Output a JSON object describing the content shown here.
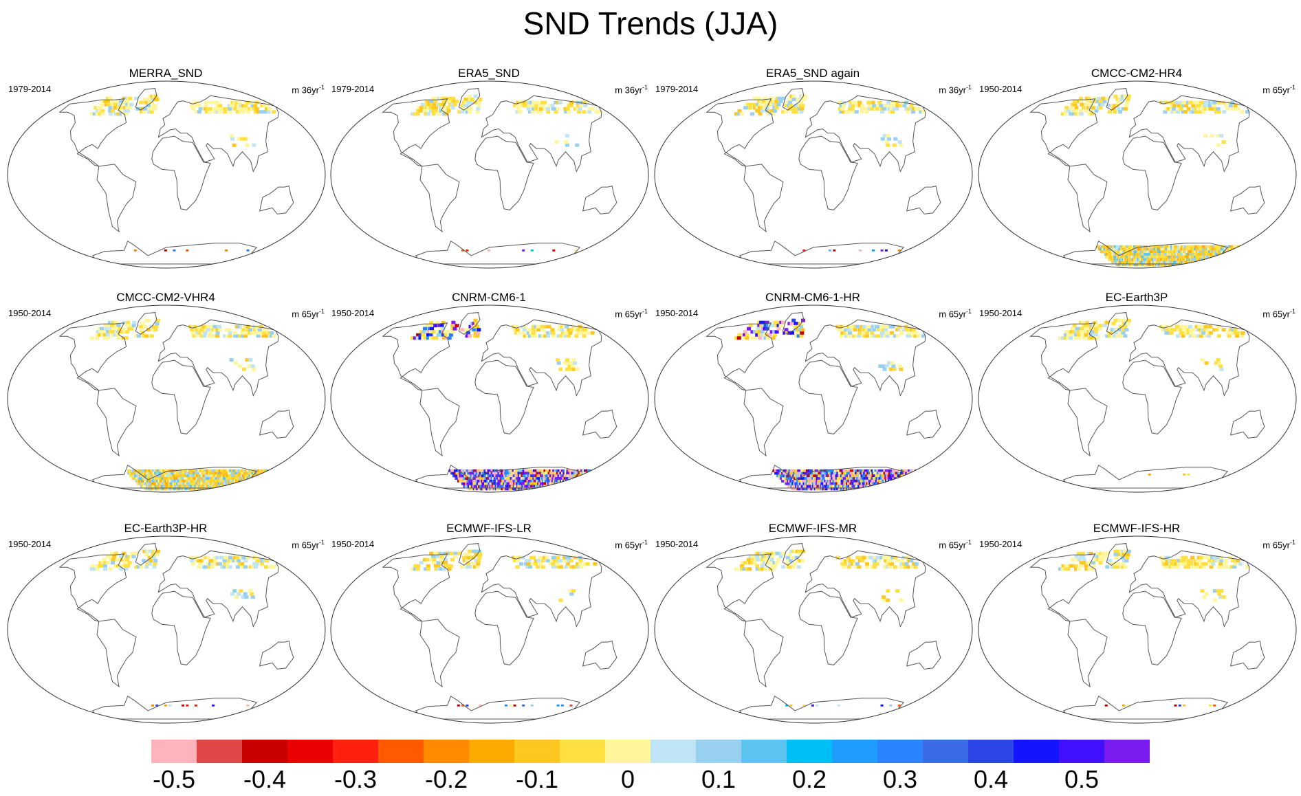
{
  "title": "SND Trends (JJA)",
  "panels": [
    {
      "title": "MERRA_SND",
      "period": "1979-2014",
      "units_base": "m 36yr",
      "units_exp": "-1",
      "pattern": "weak"
    },
    {
      "title": "ERA5_SND",
      "period": "1979-2014",
      "units_base": "m 36yr",
      "units_exp": "-1",
      "pattern": "weak"
    },
    {
      "title": "ERA5_SND again",
      "period": "1979-2014",
      "units_base": "m 36yr",
      "units_exp": "-1",
      "pattern": "weak"
    },
    {
      "title": "CMCC-CM2-HR4",
      "period": "1950-2014",
      "units_base": "m 65yr",
      "units_exp": "-1",
      "pattern": "antarctic-pos"
    },
    {
      "title": "CMCC-CM2-VHR4",
      "period": "1950-2014",
      "units_base": "m 65yr",
      "units_exp": "-1",
      "pattern": "antarctic-pos"
    },
    {
      "title": "CNRM-CM6-1",
      "period": "1950-2014",
      "units_base": "m 65yr",
      "units_exp": "-1",
      "pattern": "antarctic-strong"
    },
    {
      "title": "CNRM-CM6-1-HR",
      "period": "1950-2014",
      "units_base": "m 65yr",
      "units_exp": "-1",
      "pattern": "antarctic-strong"
    },
    {
      "title": "EC-Earth3P",
      "period": "1950-2014",
      "units_base": "m 65yr",
      "units_exp": "-1",
      "pattern": "weak"
    },
    {
      "title": "EC-Earth3P-HR",
      "period": "1950-2014",
      "units_base": "m 65yr",
      "units_exp": "-1",
      "pattern": "weak"
    },
    {
      "title": "ECMWF-IFS-LR",
      "period": "1950-2014",
      "units_base": "m 65yr",
      "units_exp": "-1",
      "pattern": "weak"
    },
    {
      "title": "ECMWF-IFS-MR",
      "period": "1950-2014",
      "units_base": "m 65yr",
      "units_exp": "-1",
      "pattern": "weak"
    },
    {
      "title": "ECMWF-IFS-HR",
      "period": "1950-2014",
      "units_base": "m 65yr",
      "units_exp": "-1",
      "pattern": "weak"
    }
  ],
  "colorbar": {
    "colors": [
      "#ffb3ba",
      "#e04848",
      "#c80000",
      "#ea0000",
      "#ff2010",
      "#ff5a00",
      "#ff8a00",
      "#ffaa00",
      "#ffc820",
      "#ffe040",
      "#fff59a",
      "#bfe4f6",
      "#9ad0ef",
      "#5cc4f0",
      "#00bff5",
      "#1e9dff",
      "#2a84ff",
      "#3a6ae6",
      "#2c45e6",
      "#1414ff",
      "#4010ff",
      "#7a1cf0"
    ],
    "labels": [
      "-0.5",
      "-0.4",
      "-0.3",
      "-0.2",
      "-0.1",
      "0",
      "0.1",
      "0.2",
      "0.3",
      "0.4",
      "0.5"
    ],
    "label_values": [
      -0.5,
      -0.4,
      -0.3,
      -0.2,
      -0.1,
      0,
      0.1,
      0.2,
      0.3,
      0.4,
      0.5
    ]
  }
}
